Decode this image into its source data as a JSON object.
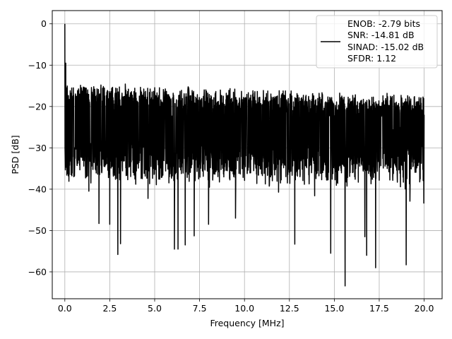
{
  "chart_data": {
    "type": "line",
    "title": "",
    "xlabel": "Frequency [MHz]",
    "ylabel": "PSD [dB]",
    "xlim": [
      -0.7,
      21.0
    ],
    "ylim": [
      -66.5,
      3.2
    ],
    "xticks": [
      0.0,
      2.5,
      5.0,
      7.5,
      10.0,
      12.5,
      15.0,
      17.5,
      20.0
    ],
    "xtick_labels": [
      "0.0",
      "2.5",
      "5.0",
      "7.5",
      "10.0",
      "12.5",
      "15.0",
      "17.5",
      "20.0"
    ],
    "yticks": [
      0,
      -10,
      -20,
      -30,
      -40,
      -50,
      -60
    ],
    "ytick_labels": [
      "0",
      "−10",
      "−20",
      "−30",
      "−40",
      "−50",
      "−60"
    ],
    "grid": true,
    "legend_position": "top-right",
    "legend_entries": [
      "ENOB: -2.79 bits",
      "SNR: -14.81 dB",
      "SINAD: -15.02 dB",
      "SFDR: 1.12"
    ],
    "series": [
      {
        "color": "#000000",
        "x_range": [
          0.0,
          20.0
        ],
        "noise_band_db": [
          -35,
          -15
        ],
        "notable_points": [
          {
            "x": 0.0,
            "y": 0.0
          },
          {
            "x": 0.05,
            "y": -9.5
          },
          {
            "x": 0.1,
            "y": -15.5
          },
          {
            "x": 0.15,
            "y": -24.0
          },
          {
            "x": 0.35,
            "y": -36.5
          },
          {
            "x": 1.45,
            "y": -38.5
          },
          {
            "x": 1.9,
            "y": -48.3
          },
          {
            "x": 2.5,
            "y": -48.5
          },
          {
            "x": 2.95,
            "y": -55.8
          },
          {
            "x": 3.1,
            "y": -53.2
          },
          {
            "x": 6.1,
            "y": -54.5
          },
          {
            "x": 6.3,
            "y": -54.5
          },
          {
            "x": 6.7,
            "y": -53.5
          },
          {
            "x": 7.2,
            "y": -51.3
          },
          {
            "x": 8.0,
            "y": -48.5
          },
          {
            "x": 9.5,
            "y": -47.0
          },
          {
            "x": 12.8,
            "y": -53.3
          },
          {
            "x": 14.8,
            "y": -55.5
          },
          {
            "x": 15.6,
            "y": -63.4
          },
          {
            "x": 16.7,
            "y": -51.5
          },
          {
            "x": 16.8,
            "y": -56.0
          },
          {
            "x": 17.3,
            "y": -59.0
          },
          {
            "x": 19.0,
            "y": -58.3
          },
          {
            "x": 20.0,
            "y": -22.0
          }
        ]
      }
    ]
  }
}
